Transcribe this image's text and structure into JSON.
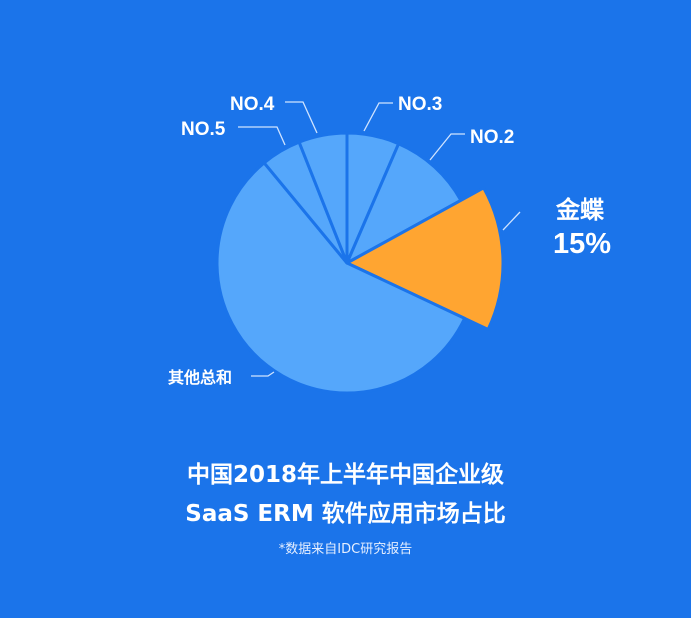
{
  "chart_data": {
    "type": "pie",
    "title": "中国2018年上半年中国企业级",
    "subtitle": "SaaS ERM 软件应用市场占比",
    "note": "*数据来自IDC研究报告",
    "slices": [
      {
        "label": "NO.3",
        "value": 6.5,
        "color": "#55a7fb"
      },
      {
        "label": "NO.2",
        "value": 10.5,
        "color": "#55a7fb"
      },
      {
        "label": "金蝶",
        "value": 15,
        "value_label": "15%",
        "color": "#ffa531",
        "highlighted": true
      },
      {
        "label": "其他总和",
        "value": 57,
        "color": "#55a7fb"
      },
      {
        "label": "NO.5",
        "value": 5,
        "color": "#55a7fb"
      },
      {
        "label": "NO.4",
        "value": 6,
        "color": "#55a7fb"
      }
    ],
    "background": "#1b74ea"
  }
}
